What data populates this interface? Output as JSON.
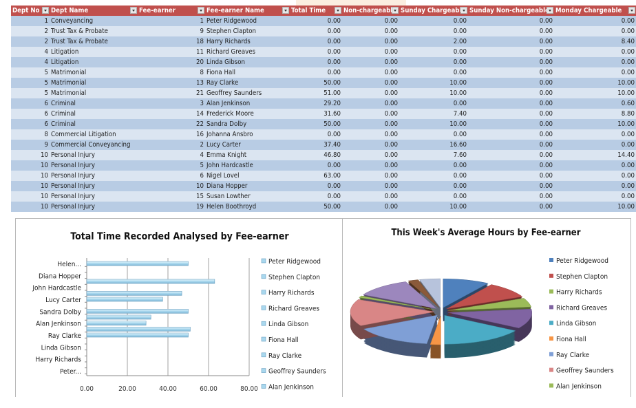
{
  "table": {
    "columns": [
      "Dept No",
      "Dept Name",
      "Fee-earner",
      "Fee-earner Name",
      "Total Time",
      "Non-chargeable",
      "Sunday Chargeable",
      "Sunday Non-chargeable",
      "Monday Chargeable"
    ],
    "rows": [
      [
        "1",
        "Conveyancing",
        "1",
        "Peter Ridgewood",
        "0.00",
        "0.00",
        "0.00",
        "0.00",
        "0.00"
      ],
      [
        "2",
        "Trust Tax & Probate",
        "9",
        "Stephen Clapton",
        "0.00",
        "0.00",
        "0.00",
        "0.00",
        "0.00"
      ],
      [
        "2",
        "Trust Tax & Probate",
        "18",
        "Harry Richards",
        "0.00",
        "0.00",
        "2.00",
        "0.00",
        "8.40"
      ],
      [
        "4",
        "Litigation",
        "11",
        "Richard Greaves",
        "0.00",
        "0.00",
        "0.00",
        "0.00",
        "0.00"
      ],
      [
        "4",
        "Litigation",
        "20",
        "Linda Gibson",
        "0.00",
        "0.00",
        "0.00",
        "0.00",
        "0.00"
      ],
      [
        "5",
        "Matrimonial",
        "8",
        "Fiona Hall",
        "0.00",
        "0.00",
        "0.00",
        "0.00",
        "0.00"
      ],
      [
        "5",
        "Matrimonial",
        "13",
        "Ray Clarke",
        "50.00",
        "0.00",
        "10.00",
        "0.00",
        "10.00"
      ],
      [
        "5",
        "Matrimonial",
        "21",
        "Geoffrey Saunders",
        "51.00",
        "0.00",
        "10.00",
        "0.00",
        "10.00"
      ],
      [
        "6",
        "Criminal",
        "3",
        "Alan Jenkinson",
        "29.20",
        "0.00",
        "0.00",
        "0.00",
        "0.60"
      ],
      [
        "6",
        "Criminal",
        "14",
        "Frederick Moore",
        "31.60",
        "0.00",
        "7.40",
        "0.00",
        "8.80"
      ],
      [
        "6",
        "Criminal",
        "22",
        "Sandra Dolby",
        "50.00",
        "0.00",
        "10.00",
        "0.00",
        "10.00"
      ],
      [
        "8",
        "Commercial Litigation",
        "16",
        "Johanna Ansbro",
        "0.00",
        "0.00",
        "0.00",
        "0.00",
        "0.00"
      ],
      [
        "9",
        "Commercial Conveyancing",
        "2",
        "Lucy Carter",
        "37.40",
        "0.00",
        "16.60",
        "0.00",
        "0.00"
      ],
      [
        "10",
        "Personal Injury",
        "4",
        "Emma Knight",
        "46.80",
        "0.00",
        "7.60",
        "0.00",
        "14.40"
      ],
      [
        "10",
        "Personal Injury",
        "5",
        "John Hardcastle",
        "0.00",
        "0.00",
        "0.00",
        "0.00",
        "0.00"
      ],
      [
        "10",
        "Personal Injury",
        "6",
        "Nigel Lovel",
        "63.00",
        "0.00",
        "0.00",
        "0.00",
        "0.00"
      ],
      [
        "10",
        "Personal Injury",
        "10",
        "Diana Hopper",
        "0.00",
        "0.00",
        "0.00",
        "0.00",
        "0.00"
      ],
      [
        "10",
        "Personal Injury",
        "15",
        "Susan Lowther",
        "0.00",
        "0.00",
        "0.00",
        "0.00",
        "0.00"
      ],
      [
        "10",
        "Personal Injury",
        "19",
        "Helen Boothroyd",
        "50.00",
        "0.00",
        "10.00",
        "0.00",
        "10.00"
      ]
    ],
    "header_color": "#c0504d",
    "band_colors": [
      "#b8cce4",
      "#dbe5f1"
    ]
  },
  "chart_data": [
    {
      "type": "bar",
      "orientation": "horizontal",
      "title": "Total Time Recorded Analysed by Fee-earner",
      "categories": [
        "Peter Ridgewood",
        "Stephen Clapton",
        "Harry Richards",
        "Richard Greaves",
        "Linda Gibson",
        "Fiona Hall",
        "Ray Clarke",
        "Geoffrey Saunders",
        "Alan Jenkinson",
        "Frederick Moore",
        "Sandra Dolby",
        "Johanna Ansbro",
        "Lucy Carter",
        "Emma Knight",
        "John Hardcastle",
        "Nigel Lovel",
        "Diana Hopper",
        "Susan Lowther",
        "Helen Boothroyd"
      ],
      "category_tick_labels": [
        "Peter...",
        "Harry Richards",
        "Linda Gibson",
        "Ray Clarke",
        "Alan Jenkinson",
        "Sandra Dolby",
        "Lucy Carter",
        "John Hardcastle",
        "Diana Hopper",
        "Helen..."
      ],
      "values": [
        0,
        0,
        0,
        0,
        0,
        0,
        50,
        51,
        29.2,
        31.6,
        50,
        0,
        37.4,
        46.8,
        0,
        63,
        0,
        0,
        50
      ],
      "xlim": [
        0,
        80
      ],
      "x_tick_labels": [
        "0.00",
        "20.00",
        "40.00",
        "60.00",
        "80.00"
      ],
      "grid": true,
      "legend_position": "right",
      "legend": [
        "Peter Ridgewood",
        "Stephen Clapton",
        "Harry Richards",
        "Richard Greaves",
        "Linda Gibson",
        "Fiona Hall",
        "Ray Clarke",
        "Geoffrey Saunders",
        "Alan Jenkinson"
      ],
      "bar_color": "#a9d8ee"
    },
    {
      "type": "pie",
      "style": "3d-exploded",
      "title": "This Week's Average Hours by Fee-earner",
      "legend_position": "right",
      "legend": [
        "Peter Ridgewood",
        "Stephen Clapton",
        "Harry Richards",
        "Richard Greaves",
        "Linda Gibson",
        "Fiona Hall",
        "Ray Clarke",
        "Geoffrey Saunders",
        "Alan Jenkinson"
      ],
      "values": [
        9,
        9,
        5,
        11,
        16,
        2,
        15,
        15,
        1,
        11,
        2,
        4
      ],
      "colors": [
        "#4f81bd",
        "#c0504d",
        "#9bbb59",
        "#8064a2",
        "#4bacc6",
        "#f79646",
        "#7f9fd6",
        "#d98686",
        "#9bbb59",
        "#9c87bd",
        "#8a5a3a",
        "#b7c3dc"
      ]
    }
  ]
}
